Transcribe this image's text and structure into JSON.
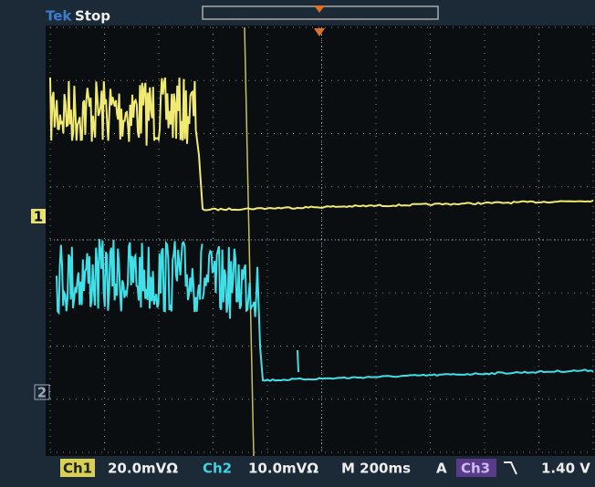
{
  "header": {
    "brand": "Tek",
    "state": "Stop"
  },
  "markers": {
    "ch1": "1",
    "ch2": "2"
  },
  "footer": {
    "ch1_label": "Ch1",
    "ch1_scale": "20.0mVΩ",
    "ch2_label": "Ch2",
    "ch2_scale": "10.0mVΩ",
    "timebase": "M 200ms",
    "trigger_mode": "A",
    "trigger_source": "Ch3",
    "trigger_level": "1.40 V"
  }
}
